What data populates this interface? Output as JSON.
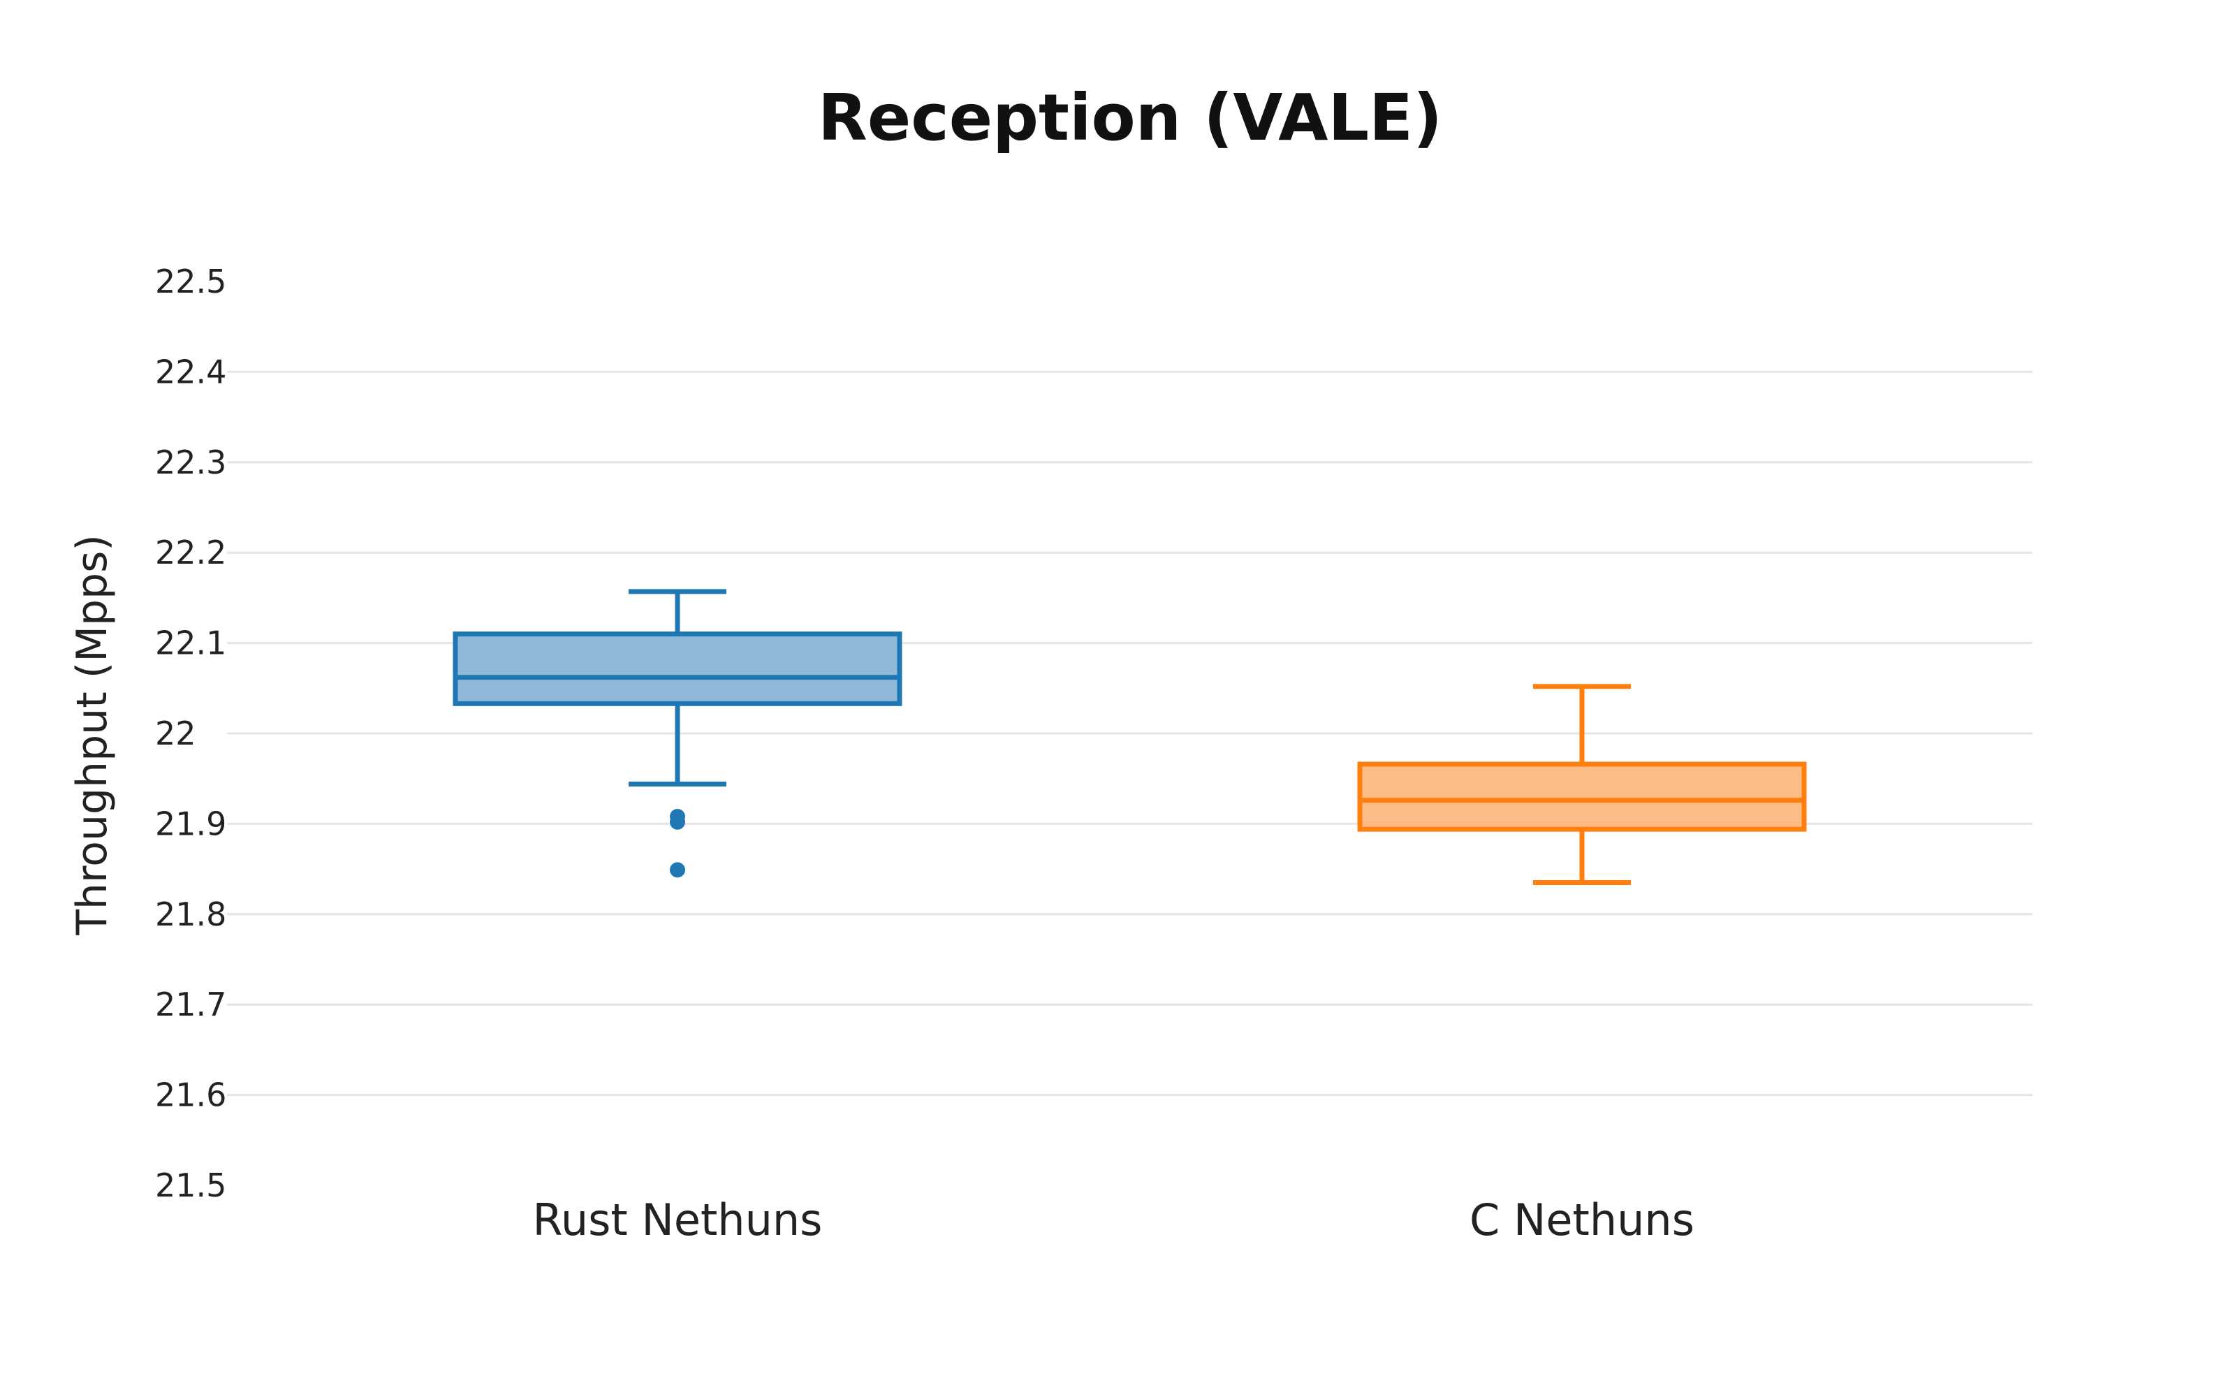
{
  "chart_data": {
    "type": "box",
    "title": "Reception (VALE)",
    "xlabel": "",
    "ylabel": "Throughput (Mpps)",
    "ylim": [
      21.5,
      22.5
    ],
    "yticks": [
      "21.5",
      "21.6",
      "21.7",
      "21.8",
      "21.9",
      "22",
      "22.1",
      "22.2",
      "22.3",
      "22.4",
      "22.5"
    ],
    "grid": true,
    "categories": [
      "Rust Nethuns",
      "C Nethuns"
    ],
    "series": [
      {
        "category": "Rust Nethuns",
        "color": "#1f77b4",
        "fill": "#8fb9d9",
        "whisker_low": 21.944,
        "q1": 22.033,
        "median": 22.062,
        "q3": 22.11,
        "whisker_high": 22.157,
        "outliers": [
          21.908,
          21.902,
          21.849
        ]
      },
      {
        "category": "C Nethuns",
        "color": "#ff7f0e",
        "fill": "#fdbb85",
        "whisker_low": 21.835,
        "q1": 21.894,
        "median": 21.926,
        "q3": 21.966,
        "whisker_high": 22.052,
        "outliers": []
      }
    ]
  }
}
